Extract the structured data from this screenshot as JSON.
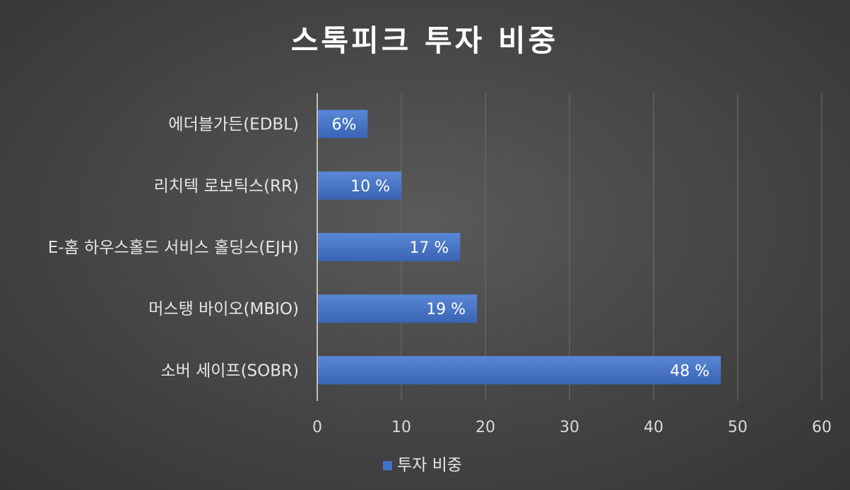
{
  "chart_data": {
    "type": "bar",
    "orientation": "horizontal",
    "title": "스톡피크 투자 비중",
    "categories": [
      "소버 세이프(SOBR)",
      "머스탱 바이오(MBIO)",
      "E-홈 하우스홀드 서비스 홀딩스(EJH)",
      "리치텍 로보틱스(RR)",
      "에더블가든(EDBL)"
    ],
    "series": [
      {
        "name": "투자 비중",
        "values": [
          48,
          19,
          17,
          10,
          6
        ],
        "data_labels": [
          "48 %",
          "19 %",
          "17 %",
          "10 %",
          "6%"
        ],
        "color": "#4472c4"
      }
    ],
    "xlim": [
      0,
      60
    ],
    "x_ticks": [
      0,
      10,
      20,
      30,
      40,
      50,
      60
    ],
    "grid": true,
    "legend_position": "bottom"
  }
}
